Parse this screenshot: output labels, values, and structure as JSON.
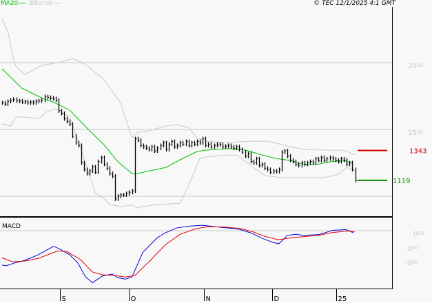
{
  "header": {
    "legend": [
      {
        "label": "MA20",
        "color": "#00c000"
      },
      {
        "label": "BBands",
        "color": "#c8c8c8"
      }
    ],
    "copyright": "© TEC 12/1/2025 4:1 GMT"
  },
  "colors": {
    "bars": "#000000",
    "ma": "#00c000",
    "bands": "#c8c8c8",
    "macd": "#0000e0",
    "signal": "#e00000",
    "resistance": "#d00000",
    "support": "#009000",
    "grid": "#c8c8c8"
  },
  "chart_data": [
    {
      "type": "bar",
      "subtype": "ohlc-price",
      "ylim": [
        800,
        2450
      ],
      "y_ticks": [
        {
          "value": 2000,
          "label": "20.00"
        },
        {
          "value": 1500,
          "label": "15.00"
        },
        {
          "value": 1000,
          "label": ""
        }
      ],
      "grid": true,
      "x_ticks": [
        {
          "x": 20.5,
          "label": "S"
        },
        {
          "x": 44.9,
          "label": "O"
        },
        {
          "x": 71.5,
          "label": "N"
        },
        {
          "x": 95.6,
          "label": "D"
        },
        {
          "x": 118.3,
          "label": "25"
        }
      ],
      "close": [
        1700,
        1690,
        1710,
        1720,
        1725,
        1715,
        1712,
        1705,
        1708,
        1700,
        1705,
        1700,
        1710,
        1715,
        1720,
        1745,
        1740,
        1735,
        1730,
        1720,
        1640,
        1620,
        1580,
        1560,
        1540,
        1450,
        1400,
        1380,
        1250,
        1200,
        1170,
        1190,
        1220,
        1180,
        1260,
        1290,
        1240,
        1210,
        1170,
        1150,
        980,
        1000,
        1010,
        1010,
        1020,
        1030,
        1040,
        1430,
        1420,
        1380,
        1370,
        1360,
        1350,
        1370,
        1340,
        1360,
        1380,
        1400,
        1350,
        1390,
        1410,
        1370,
        1380,
        1400,
        1390,
        1410,
        1380,
        1400,
        1390,
        1410,
        1400,
        1430,
        1380,
        1390,
        1370,
        1380,
        1390,
        1385,
        1370,
        1375,
        1380,
        1370,
        1360,
        1370,
        1350,
        1330,
        1300,
        1320,
        1260,
        1250,
        1280,
        1230,
        1240,
        1210,
        1200,
        1180,
        1190,
        1185,
        1200,
        1330,
        1340,
        1300,
        1270,
        1260,
        1240,
        1230,
        1250,
        1240,
        1250,
        1260,
        1250,
        1280,
        1270,
        1290,
        1270,
        1280,
        1290,
        1280,
        1270,
        1260,
        1280,
        1270,
        1240,
        1250,
        1200,
        1119
      ],
      "ma20": [
        [
          0,
          1954
        ],
        [
          7,
          1809
        ],
        [
          14,
          1737
        ],
        [
          19,
          1696
        ],
        [
          24,
          1644
        ],
        [
          31,
          1490
        ],
        [
          36,
          1387
        ],
        [
          41,
          1258
        ],
        [
          46,
          1170
        ],
        [
          48,
          1170
        ],
        [
          50,
          1180
        ],
        [
          58,
          1216
        ],
        [
          63,
          1273
        ],
        [
          69,
          1335
        ],
        [
          72,
          1345
        ],
        [
          80,
          1356
        ],
        [
          85,
          1351
        ],
        [
          88,
          1335
        ],
        [
          92,
          1309
        ],
        [
          97,
          1283
        ],
        [
          102,
          1268
        ],
        [
          107,
          1237
        ],
        [
          111,
          1237
        ],
        [
          116,
          1258
        ],
        [
          121,
          1268
        ],
        [
          124,
          1247
        ]
      ],
      "bband_upper": [
        [
          0,
          2325
        ],
        [
          2,
          2237
        ],
        [
          4,
          2031
        ],
        [
          5,
          1969
        ],
        [
          8,
          1912
        ],
        [
          14,
          1979
        ],
        [
          21,
          2005
        ],
        [
          25,
          2031
        ],
        [
          29,
          1995
        ],
        [
          36,
          1876
        ],
        [
          42,
          1696
        ],
        [
          46,
          1438
        ],
        [
          48,
          1479
        ],
        [
          52,
          1490
        ],
        [
          58,
          1526
        ],
        [
          62,
          1536
        ],
        [
          66,
          1515
        ],
        [
          69,
          1438
        ],
        [
          72,
          1412
        ],
        [
          80,
          1402
        ],
        [
          87,
          1412
        ],
        [
          94,
          1412
        ],
        [
          97,
          1397
        ],
        [
          102,
          1371
        ],
        [
          107,
          1350
        ],
        [
          116,
          1345
        ],
        [
          121,
          1345
        ],
        [
          125,
          1309
        ]
      ],
      "bband_lower": [
        [
          0,
          1541
        ],
        [
          3,
          1526
        ],
        [
          5,
          1593
        ],
        [
          8,
          1593
        ],
        [
          13,
          1582
        ],
        [
          16,
          1634
        ],
        [
          19,
          1655
        ],
        [
          24,
          1593
        ],
        [
          29,
          1283
        ],
        [
          33,
          1026
        ],
        [
          36,
          985
        ],
        [
          38,
          938
        ],
        [
          42,
          923
        ],
        [
          46,
          933
        ],
        [
          48,
          912
        ],
        [
          50,
          923
        ],
        [
          55,
          938
        ],
        [
          63,
          948
        ],
        [
          66,
          1077
        ],
        [
          69,
          1232
        ],
        [
          70,
          1283
        ],
        [
          72,
          1294
        ],
        [
          80,
          1309
        ],
        [
          83,
          1309
        ],
        [
          88,
          1232
        ],
        [
          93,
          1155
        ],
        [
          99,
          1139
        ],
        [
          104,
          1139
        ],
        [
          114,
          1139
        ],
        [
          119,
          1165
        ],
        [
          122,
          1216
        ],
        [
          125,
          1191
        ]
      ],
      "levels": [
        {
          "value": 1343,
          "label": "1343",
          "kind": "resistance"
        },
        {
          "value": 1119,
          "label": "1119",
          "kind": "support"
        }
      ]
    },
    {
      "type": "line",
      "title": "MACD",
      "ylim": [
        -1.6,
        0.4
      ],
      "y_ticks": [
        {
          "value": 0,
          "label": "0.00"
        },
        {
          "value": -0.4,
          "label": "-0.40"
        },
        {
          "value": -0.8,
          "label": "-0.80"
        }
      ],
      "series": [
        {
          "key": "macd",
          "points": [
            [
              0,
              -0.95
            ],
            [
              1.5,
              -0.97
            ],
            [
              4.6,
              -0.89
            ],
            [
              8,
              -0.82
            ],
            [
              12.7,
              -0.67
            ],
            [
              18.3,
              -0.43
            ],
            [
              20.5,
              -0.51
            ],
            [
              24,
              -0.67
            ],
            [
              26.8,
              -0.89
            ],
            [
              29.5,
              -1.27
            ],
            [
              32,
              -1.44
            ],
            [
              35.6,
              -1.25
            ],
            [
              39,
              -1.2
            ],
            [
              41,
              -1.3
            ],
            [
              43.6,
              -1.34
            ],
            [
              46,
              -1.28
            ],
            [
              49.8,
              -0.6
            ],
            [
              55,
              -0.19
            ],
            [
              57.8,
              -0.06
            ],
            [
              62,
              0.08
            ],
            [
              66.7,
              0.13
            ],
            [
              71,
              0.15
            ],
            [
              75.5,
              0.11
            ],
            [
              79,
              0.08
            ],
            [
              83.5,
              0.05
            ],
            [
              88,
              -0.06
            ],
            [
              92.4,
              -0.22
            ],
            [
              96,
              -0.33
            ],
            [
              98,
              -0.36
            ],
            [
              101,
              -0.13
            ],
            [
              104,
              -0.1
            ],
            [
              106.6,
              -0.13
            ],
            [
              112,
              -0.11
            ],
            [
              117,
              0.01
            ],
            [
              121.7,
              0.03
            ],
            [
              124.4,
              -0.06
            ]
          ]
        },
        {
          "key": "signal",
          "points": [
            [
              0,
              -0.75
            ],
            [
              3.7,
              -0.86
            ],
            [
              8,
              -0.84
            ],
            [
              12.7,
              -0.77
            ],
            [
              19.7,
              -0.56
            ],
            [
              23,
              -0.58
            ],
            [
              27.6,
              -0.79
            ],
            [
              32,
              -1.14
            ],
            [
              35.6,
              -1.22
            ],
            [
              39,
              -1.23
            ],
            [
              43.6,
              -1.28
            ],
            [
              47,
              -1.24
            ],
            [
              52.5,
              -0.82
            ],
            [
              57.8,
              -0.39
            ],
            [
              63,
              -0.1
            ],
            [
              68.4,
              0.05
            ],
            [
              72.8,
              0.11
            ],
            [
              79,
              0.1
            ],
            [
              84.4,
              0.06
            ],
            [
              88.8,
              -0.03
            ],
            [
              93.2,
              -0.16
            ],
            [
              97.7,
              -0.25
            ],
            [
              103,
              -0.19
            ],
            [
              112,
              -0.13
            ],
            [
              117,
              -0.05
            ],
            [
              122.5,
              -0.01
            ],
            [
              124.8,
              -0.03
            ]
          ]
        }
      ]
    }
  ]
}
